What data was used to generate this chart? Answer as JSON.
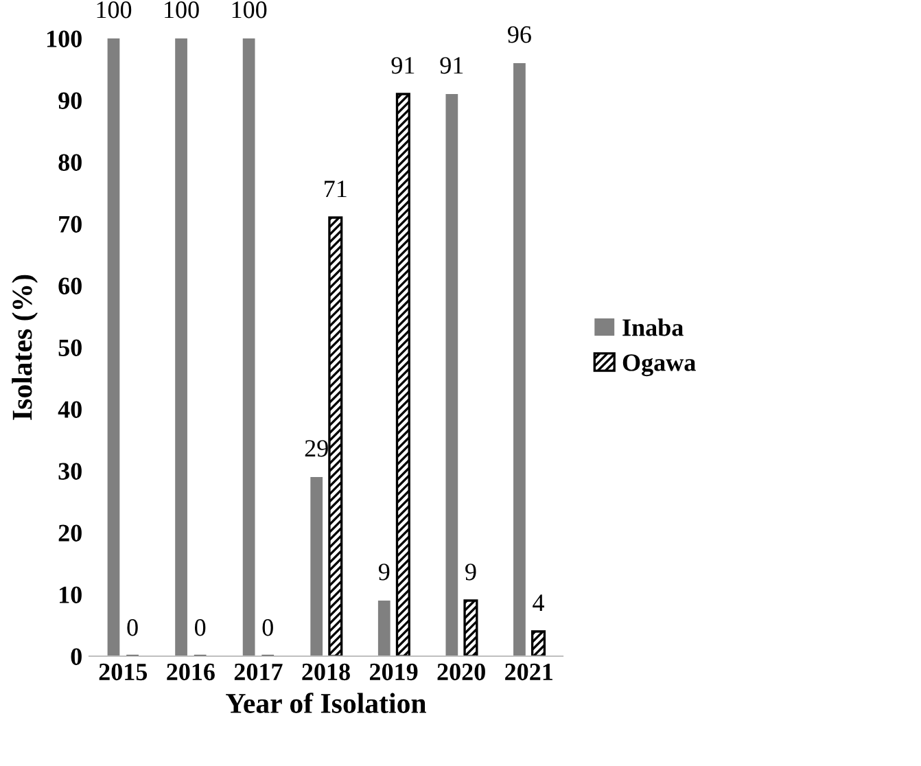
{
  "chart_data": {
    "type": "bar",
    "xlabel": "Year of Isolation",
    "ylabel": "Isolates (%)",
    "categories": [
      "2015",
      "2016",
      "2017",
      "2018",
      "2019",
      "2020",
      "2021"
    ],
    "series": [
      {
        "name": "Inaba",
        "color": "#808080",
        "values": [
          100,
          100,
          100,
          29,
          9,
          91,
          96
        ]
      },
      {
        "name": "Ogawa",
        "color": "#000000",
        "values": [
          0,
          0,
          0,
          71,
          91,
          9,
          4
        ]
      }
    ],
    "ylim": [
      0,
      100
    ],
    "yticks": [
      0,
      10,
      20,
      30,
      40,
      50,
      60,
      70,
      80,
      90,
      100
    ],
    "grid": false,
    "legend": "right",
    "data_labels": true
  }
}
